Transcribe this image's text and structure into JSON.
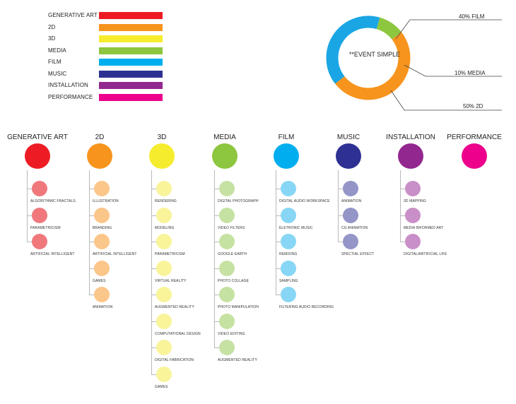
{
  "legend": [
    {
      "label": "GENERATIVE ART",
      "color": "#ed1c24"
    },
    {
      "label": "2D",
      "color": "#f7941d"
    },
    {
      "label": "3D",
      "color": "#f5ec2e"
    },
    {
      "label": "MEDIA",
      "color": "#8dc63f"
    },
    {
      "label": "FILM",
      "color": "#00aeef"
    },
    {
      "label": "MUSIC",
      "color": "#2e3192"
    },
    {
      "label": "INSTALLATION",
      "color": "#92278f"
    },
    {
      "label": "PERFORMANCE",
      "color": "#ec008c"
    }
  ],
  "donut": {
    "center_label": "**EVENT SIMPLE",
    "slices": [
      {
        "label": "40%  FILM",
        "percent": 40,
        "color": "#1aa6e4"
      },
      {
        "label": "10%  MEDIA",
        "percent": 10,
        "color": "#8dc63f"
      },
      {
        "label": "50%  2D",
        "percent": 50,
        "color": "#f7941d"
      }
    ]
  },
  "categories": [
    {
      "title": "GENERATIVE ART",
      "color": "#ed1c24",
      "sub_color": "#f0787c",
      "items": [
        "ALGORITHMIC FRACTALS",
        "PARAMETRICISM",
        "ARTIFICIAL INTELLIGENT"
      ]
    },
    {
      "title": "2D",
      "color": "#f7941d",
      "sub_color": "#fbc689",
      "items": [
        "ILLUSTRATION",
        "BRANDING",
        "ARTIFICIAL INTELLIGENT",
        "GAMES",
        "ANIMATION"
      ]
    },
    {
      "title": "3D",
      "color": "#f5ec2e",
      "sub_color": "#f9f49a",
      "items": [
        "RENDERING",
        "MODELING",
        "PARAMETRICISM",
        "VIRTUAL REALITY",
        "AUGMENTED REALITY",
        "COMPUTATIONAL DESIGN",
        "DIGITAL FABRICATION",
        "GAMES"
      ]
    },
    {
      "title": "MEDIA",
      "color": "#8dc63f",
      "sub_color": "#c6e2a3",
      "items": [
        "DIGITAL PHOTOGRAPH",
        "VIDEO FILTERS",
        "GOOGLE EARTH",
        "PHOTO COLLAGE",
        "PHOTO MANIPULATION",
        "VIDEO EDITING",
        "AUGMENTED REALITY"
      ]
    },
    {
      "title": "FILM",
      "color": "#00aeef",
      "sub_color": "#88d6f5",
      "items": [
        "DIGITAL AUDIO WORKSPACE",
        "ELETRONIC MUSIC",
        "REMIXING",
        "SAMPLING",
        "FILTERING AUDIO RECORDING"
      ]
    },
    {
      "title": "MUSIC",
      "color": "#2e3192",
      "sub_color": "#9496c8",
      "items": [
        "ANIMATION",
        "CG ANIMATION",
        "SPECTIAL EFFECT"
      ]
    },
    {
      "title": "INSTALLATION",
      "color": "#92278f",
      "sub_color": "#c98fc8",
      "items": [
        "3D MAPPING",
        "MEDIA INFORMED ART",
        "DIGITAL/ARTIFICIAL LIFE"
      ]
    },
    {
      "title": "PERFORMANCE",
      "color": "#ec008c",
      "sub_color": "#f77fc4",
      "items": []
    }
  ]
}
